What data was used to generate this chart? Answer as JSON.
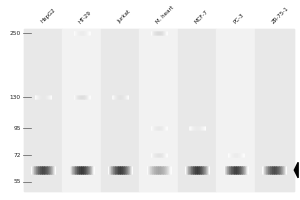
{
  "lane_labels": [
    "HepG2",
    "HT-29",
    "Jurkat",
    "M. heart",
    "MCF-7",
    "PC-3",
    "ZR-75-1"
  ],
  "mw_markers": [
    250,
    130,
    95,
    72,
    55
  ],
  "fig_bg": "#ffffff",
  "gel_bg": "#f0f0f0",
  "lane_colors": [
    "#e8e8e8",
    "#f2f2f2"
  ],
  "main_bands": [
    {
      "lane": 0,
      "intensity": 0.82
    },
    {
      "lane": 1,
      "intensity": 0.88
    },
    {
      "lane": 2,
      "intensity": 0.86
    },
    {
      "lane": 3,
      "intensity": 0.4
    },
    {
      "lane": 4,
      "intensity": 0.87
    },
    {
      "lane": 5,
      "intensity": 0.85
    },
    {
      "lane": 6,
      "intensity": 0.8
    }
  ],
  "ns_bands": [
    {
      "lane": 0,
      "mw": 130,
      "intensity": 0.12
    },
    {
      "lane": 1,
      "mw": 250,
      "intensity": 0.1
    },
    {
      "lane": 1,
      "mw": 130,
      "intensity": 0.18
    },
    {
      "lane": 2,
      "mw": 130,
      "intensity": 0.15
    },
    {
      "lane": 3,
      "mw": 250,
      "intensity": 0.2
    },
    {
      "lane": 3,
      "mw": 95,
      "intensity": 0.12
    },
    {
      "lane": 3,
      "mw": 72,
      "intensity": 0.15
    },
    {
      "lane": 4,
      "mw": 95,
      "intensity": 0.1
    },
    {
      "lane": 5,
      "mw": 72,
      "intensity": 0.1
    }
  ],
  "main_band_mw": 62,
  "arrow_after_lane": 6
}
